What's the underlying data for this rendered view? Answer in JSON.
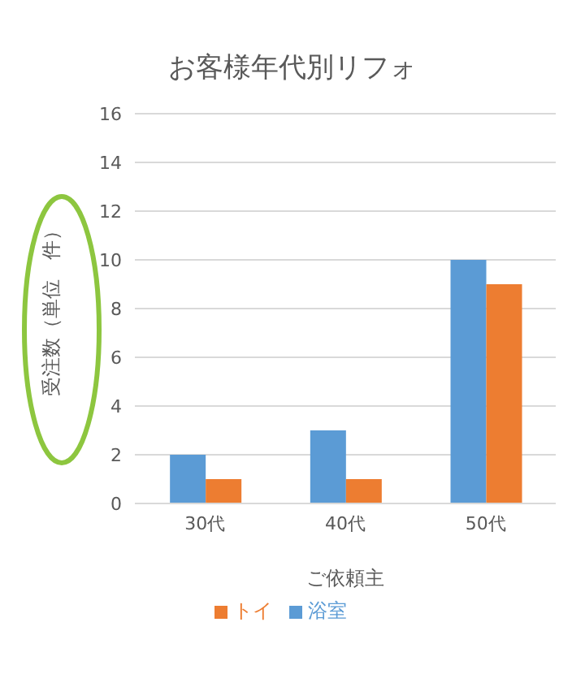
{
  "chart_data": {
    "type": "bar",
    "title": "お客様年代別リフォ",
    "xlabel": "ご依頼主",
    "ylabel": "受注数（単位　件）",
    "categories": [
      "30代",
      "40代",
      "50代"
    ],
    "series": [
      {
        "name": "浴室",
        "color": "#5b9bd5",
        "values": [
          2,
          3,
          10
        ]
      },
      {
        "name": "トイ",
        "color": "#ed7d31",
        "values": [
          1,
          1,
          9
        ]
      }
    ],
    "ylim": [
      0,
      16
    ],
    "yticks": [
      0,
      2,
      4,
      6,
      8,
      10,
      12,
      14,
      16
    ],
    "grid": "y",
    "legend": "bottom"
  }
}
